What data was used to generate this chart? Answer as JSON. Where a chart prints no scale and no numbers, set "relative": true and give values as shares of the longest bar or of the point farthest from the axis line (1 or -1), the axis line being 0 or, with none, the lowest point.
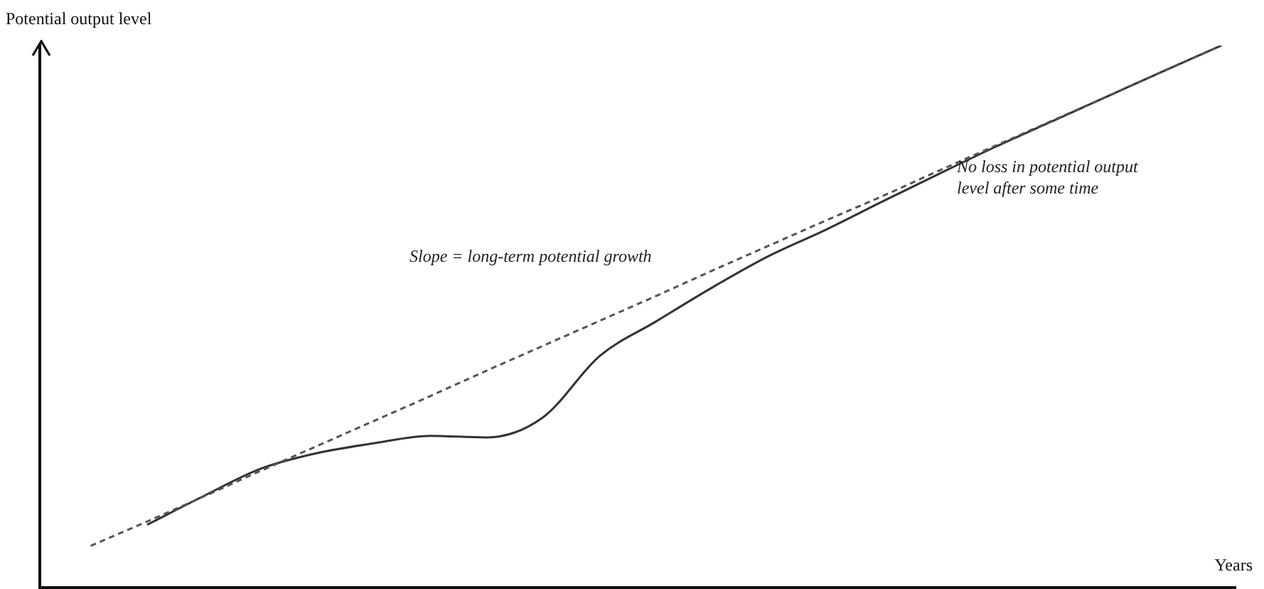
{
  "chart_data": {
    "type": "line",
    "relative": true,
    "xlabel": "Years",
    "ylabel": "Potential output level",
    "annotations": [
      "Slope = long-term potential growth",
      "No loss in potential output level after some time"
    ],
    "categories": [
      null,
      null,
      null,
      null,
      null,
      null,
      null,
      null,
      null,
      null,
      null,
      null,
      null,
      null,
      null,
      null,
      null,
      null,
      null,
      null,
      null
    ],
    "series": [
      {
        "color": "#555555",
        "line_style": "dashed",
        "values": [
          0.077,
          0.122,
          0.168,
          0.215,
          0.261,
          0.307,
          0.353,
          0.4,
          0.446,
          0.492,
          0.538,
          0.585,
          0.631,
          0.677,
          0.722,
          0.769,
          0.815,
          0.861,
          0.907,
          0.954,
          1
        ]
      },
      {
        "color": "#333333",
        "line_style": "solid",
        "values": [
          null,
          0.116,
          0.169,
          0.219,
          0.248,
          0.266,
          0.28,
          0.277,
          0.314,
          0.427,
          0.491,
          0.554,
          0.612,
          0.66,
          0.712,
          0.763,
          0.813,
          0.86,
          0.907,
          0.954,
          1
        ]
      }
    ],
    "legend": false,
    "marker": "none",
    "grid": false
  }
}
